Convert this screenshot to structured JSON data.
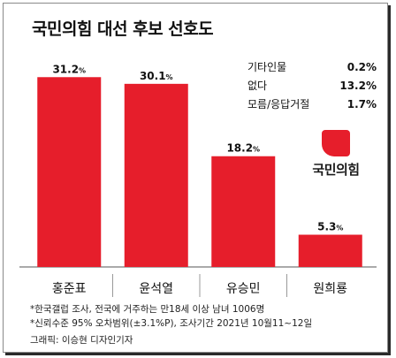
{
  "title": "국민의힘 대선 후보 선호도",
  "chart_data": {
    "type": "bar",
    "categories": [
      "홍준표",
      "윤석열",
      "유승민",
      "원희룡"
    ],
    "values": [
      31.2,
      30.1,
      18.2,
      5.3
    ],
    "value_labels": [
      "31.2",
      "30.1",
      "18.2",
      "5.3"
    ],
    "value_unit": "%",
    "bar_color": "#e61e2b",
    "ylim": [
      0,
      34
    ]
  },
  "legend": [
    {
      "label": "기타인물",
      "value": "0.2%"
    },
    {
      "label": "없다",
      "value": "13.2%"
    },
    {
      "label": "모름/응답거절",
      "value": "1.7%"
    }
  ],
  "logo": {
    "text": "국민의힘",
    "color": "#e61e2b"
  },
  "notes": [
    "*한국갤럽 조사, 전국에 거주하는 만18세 이상 남녀 1006명",
    "*신뢰수준 95% 오차범위(±3.1%P), 조사기간 2021년 10월11~12일"
  ],
  "credit": "그래픽: 이승현 디자인기자"
}
